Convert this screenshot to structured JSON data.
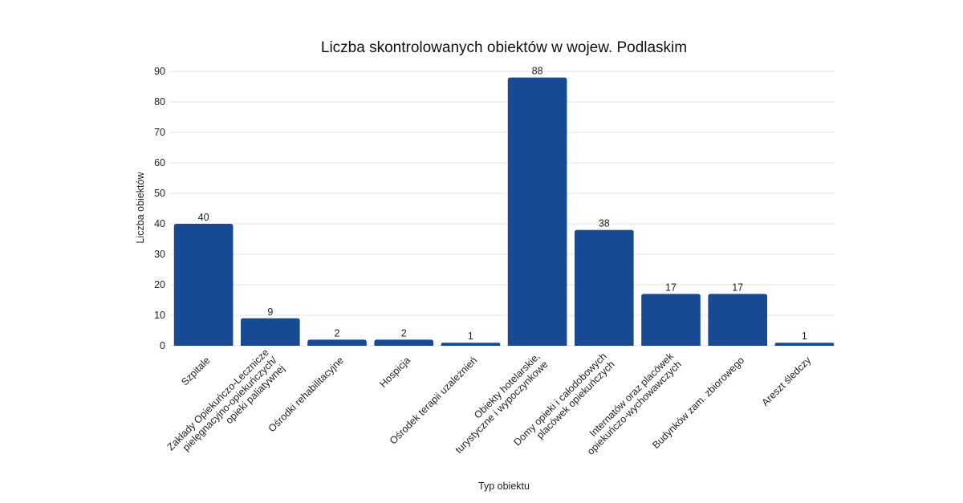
{
  "chart_data": {
    "type": "bar",
    "title": "Liczba skontrolowanych obiektów w wojew. Podlaskim",
    "xlabel": "Typ obiektu",
    "ylabel": "Liczba obiektów",
    "ylim": [
      0,
      90
    ],
    "yticks": [
      0,
      10,
      20,
      30,
      40,
      50,
      60,
      70,
      80,
      90
    ],
    "grid": true,
    "bar_color": "#174a92",
    "categories": [
      [
        "Szpitale"
      ],
      [
        "Zakłady Opiekuńczo-Lecznicze",
        "pielęgnacyjno-opiekuńczych/",
        "opieki paliatywnej"
      ],
      [
        "Ośrodki rehabilitacyjne"
      ],
      [
        "Hospicja"
      ],
      [
        "Ośrodek terapii uzależnień"
      ],
      [
        "Obiekty hotelarskie,",
        "turystyczne i wypoczynkowe"
      ],
      [
        "Domy opieki i całodobowych",
        "placówek opiekuńczych"
      ],
      [
        "Internatów oraz placówek",
        "opiekuńczo-wychowawczych"
      ],
      [
        "Budynków zam. zbiorowego"
      ],
      [
        "Areszt śledczy"
      ]
    ],
    "values": [
      40,
      9,
      2,
      2,
      1,
      88,
      38,
      17,
      17,
      1
    ]
  }
}
